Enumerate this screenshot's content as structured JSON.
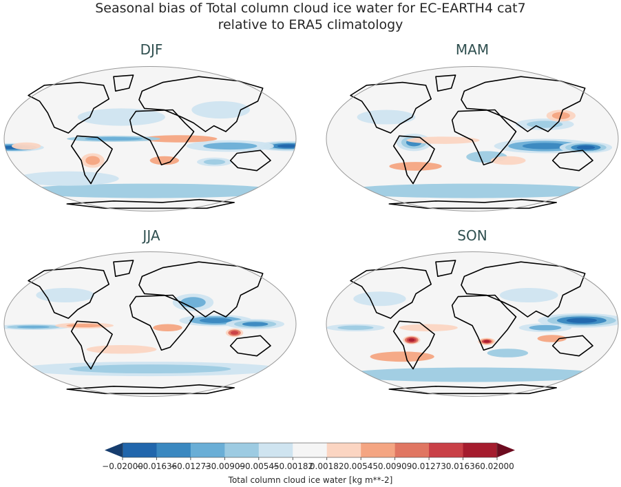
{
  "title_line1": "Seasonal bias of Total column cloud ice water for EC-EARTH4 cat7",
  "title_line2": "relative to ERA5 climatology",
  "chart_data": {
    "type": "heatmap",
    "title": "Seasonal bias of Total column cloud ice water for EC-EARTH4 cat7 relative to ERA5 climatology",
    "projection": "Robinson",
    "panels": [
      "DJF",
      "MAM",
      "JJA",
      "SON"
    ],
    "colorbar": {
      "label": "Total column cloud ice water [kg m**-2]",
      "ticks": [
        "−0.02000",
        "−0.01636",
        "−0.01273",
        "−0.00909",
        "−0.00545",
        "−0.00182",
        "0.00182",
        "0.00545",
        "0.00909",
        "0.01273",
        "0.01636",
        "0.02000"
      ],
      "tick_values": [
        -0.02,
        -0.01636,
        -0.01273,
        -0.00909,
        -0.00545,
        -0.00182,
        0.00182,
        0.00545,
        0.00909,
        0.01273,
        0.01636,
        0.02
      ],
      "colors": [
        "#2166ac",
        "#3a88c0",
        "#6aaed6",
        "#9dcbe2",
        "#cfe4f0",
        "#f5f5f5",
        "#fbd5c2",
        "#f4a582",
        "#e07662",
        "#c94047",
        "#a51c2e"
      ],
      "under_color": "#163d6e",
      "over_color": "#6d0b1f",
      "extend": "both"
    }
  }
}
